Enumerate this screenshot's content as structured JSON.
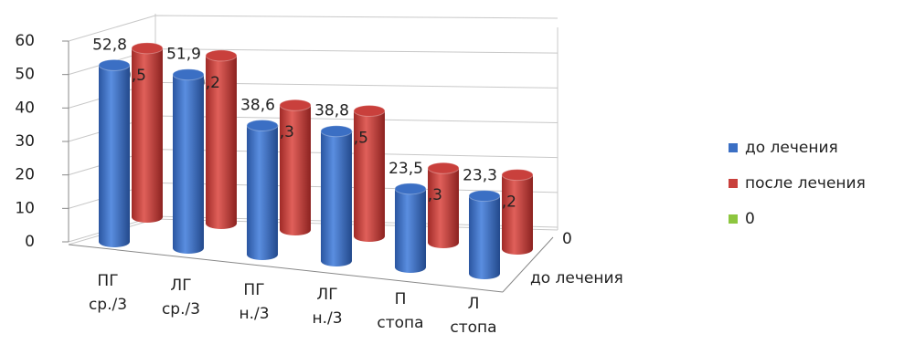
{
  "chart_data": {
    "type": "bar3d",
    "categories": [
      "ПГ ср./3",
      "ЛГ ср./3",
      "ПГ н./3",
      "ЛГ н./3",
      "П стопа",
      "Л стопа"
    ],
    "depth_categories": [
      "до лечения",
      "0"
    ],
    "series": [
      {
        "name": "до лечения",
        "color": "#3b6fc4",
        "values": [
          52.8,
          51.9,
          38.6,
          38.8,
          23.5,
          23.3
        ],
        "value_labels": [
          "52,8",
          "51,9",
          "38,6",
          "38,8",
          "23,5",
          "23,3"
        ]
      },
      {
        "name": "после лечения",
        "color": "#c9403c",
        "values": [
          50.5,
          50.2,
          37.3,
          37.5,
          22.3,
          22.2
        ],
        "value_labels": [
          "50,5",
          "50,2",
          "37,3",
          "37,5",
          "22,3",
          "22,2"
        ]
      },
      {
        "name": "0",
        "color": "#8dc63f",
        "values": [
          null,
          null,
          null,
          null,
          null,
          null
        ]
      }
    ],
    "ylim": [
      0,
      60
    ],
    "yticks": [
      0,
      10,
      20,
      30,
      40,
      50,
      60
    ],
    "grid": true,
    "legend": "right"
  }
}
